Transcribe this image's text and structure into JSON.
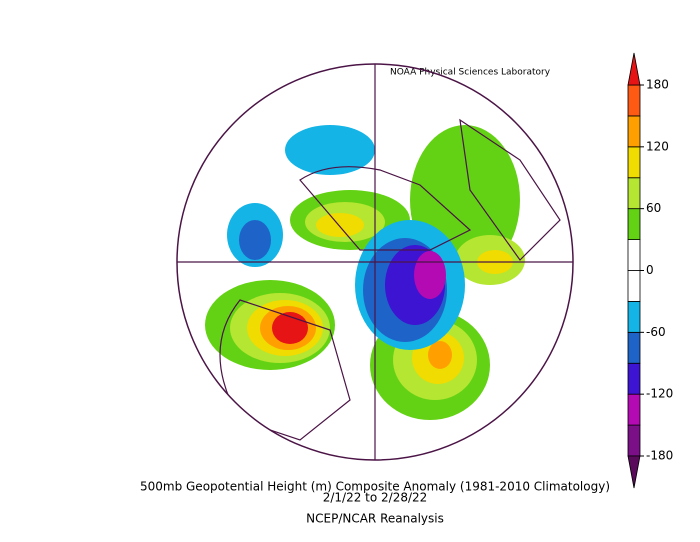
{
  "header": {
    "credit": "NOAA Physical Sciences Laboratory"
  },
  "colorbar": {
    "lim": [
      -180,
      180
    ],
    "ticks": [
      180,
      120,
      60,
      0,
      -60,
      -120,
      -180
    ],
    "colors": [
      "#7a0f87",
      "#b40ab4",
      "#3c14d2",
      "#1e64c8",
      "#14b4e6",
      "#ffffff",
      "#ffffff",
      "#64d214",
      "#b4e632",
      "#f0dc00",
      "#ffa000",
      "#ff5a14"
    ],
    "over_color": "#e61414",
    "under_color": "#5a0a5a"
  },
  "caption": {
    "title": "500mb Geopotential Height (m) Composite Anomaly (1981-2010 Climatology)",
    "dates": "2/1/22  to 2/28/22",
    "source": "NCEP/NCAR Reanalysis"
  }
}
